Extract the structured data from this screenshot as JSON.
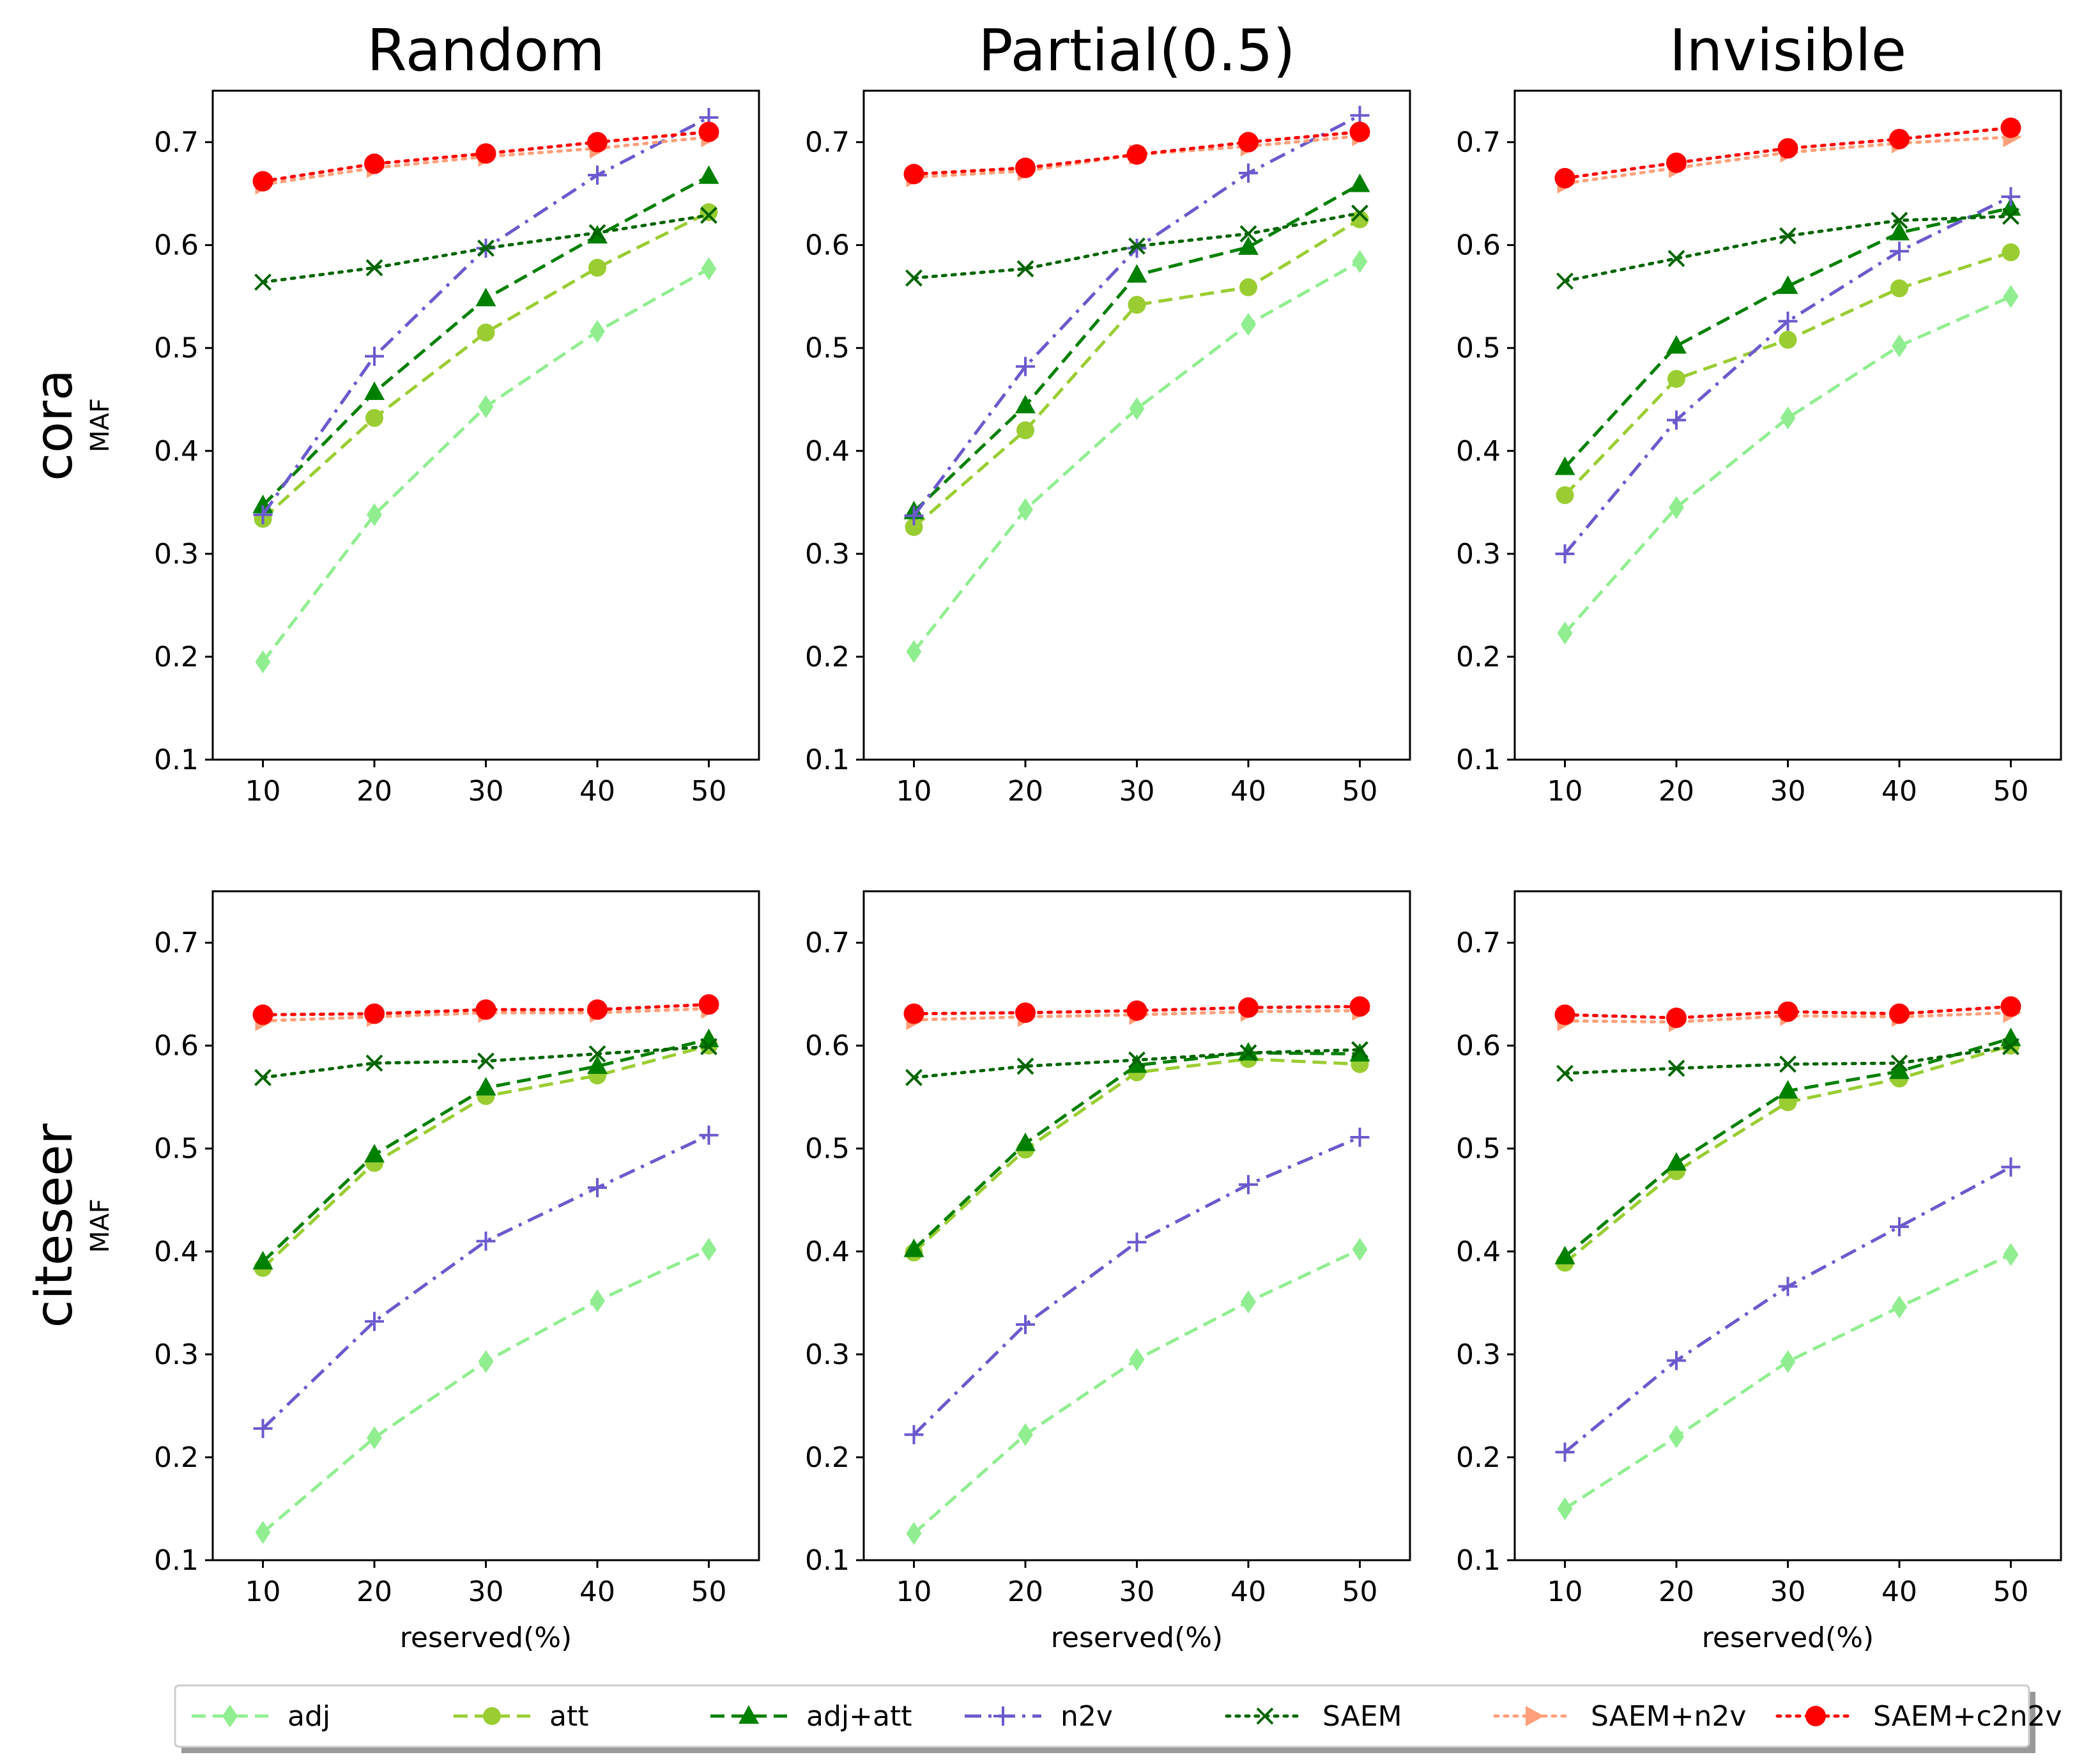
{
  "chart_data": {
    "type": "line",
    "column_titles": [
      "Random",
      "Partial(0.5)",
      "Invisible"
    ],
    "row_titles": [
      "cora",
      "citeseer"
    ],
    "ylabel": "MAF",
    "xlabel": "reserved(%)",
    "x": [
      10,
      20,
      30,
      40,
      50
    ],
    "ylim": [
      0.1,
      0.75
    ],
    "yticks": [
      0.1,
      0.2,
      0.3,
      0.4,
      0.5,
      0.6,
      0.7
    ],
    "xticks": [
      10,
      20,
      30,
      40,
      50
    ],
    "ytick_labels": [
      "0.1",
      "0.2",
      "0.3",
      "0.4",
      "0.5",
      "0.6",
      "0.7"
    ],
    "xtick_labels": [
      "10",
      "20",
      "30",
      "40",
      "50"
    ],
    "series_styles": [
      {
        "name": "adj",
        "color": "#90ee90",
        "dash": "dashed",
        "marker": "diamond"
      },
      {
        "name": "att",
        "color": "#9acd32",
        "dash": "dashed",
        "marker": "circle"
      },
      {
        "name": "adj+att",
        "color": "#008000",
        "dash": "dashed",
        "marker": "triangle"
      },
      {
        "name": "n2v",
        "color": "#6a5acd",
        "dash": "dashdot",
        "marker": "plus"
      },
      {
        "name": "SAEM",
        "color": "#006400",
        "dash": "dotted",
        "marker": "x"
      },
      {
        "name": "SAEM+n2v",
        "color": "#ffa07a",
        "dash": "dotted",
        "marker": "triangle-right"
      },
      {
        "name": "SAEM+c2n2v",
        "color": "#ff0000",
        "dash": "dotted",
        "marker": "circle-large"
      }
    ],
    "panels": [
      {
        "row": "cora",
        "column": "Random",
        "series": [
          {
            "name": "adj",
            "values": [
              0.195,
              0.338,
              0.443,
              0.516,
              0.577
            ]
          },
          {
            "name": "att",
            "values": [
              0.334,
              0.432,
              0.515,
              0.578,
              0.632
            ]
          },
          {
            "name": "adj+att",
            "values": [
              0.347,
              0.457,
              0.548,
              0.609,
              0.667
            ]
          },
          {
            "name": "n2v",
            "values": [
              0.338,
              0.492,
              0.597,
              0.668,
              0.724
            ]
          },
          {
            "name": "SAEM",
            "values": [
              0.564,
              0.578,
              0.597,
              0.612,
              0.629
            ]
          },
          {
            "name": "SAEM+n2v",
            "values": [
              0.659,
              0.675,
              0.686,
              0.694,
              0.705
            ]
          },
          {
            "name": "SAEM+c2n2v",
            "values": [
              0.662,
              0.679,
              0.689,
              0.7,
              0.71
            ]
          }
        ]
      },
      {
        "row": "cora",
        "column": "Partial(0.5)",
        "series": [
          {
            "name": "adj",
            "values": [
              0.205,
              0.343,
              0.441,
              0.523,
              0.584
            ]
          },
          {
            "name": "att",
            "values": [
              0.326,
              0.42,
              0.542,
              0.559,
              0.625
            ]
          },
          {
            "name": "adj+att",
            "values": [
              0.341,
              0.444,
              0.571,
              0.598,
              0.659
            ]
          },
          {
            "name": "n2v",
            "values": [
              0.337,
              0.482,
              0.597,
              0.67,
              0.726
            ]
          },
          {
            "name": "SAEM",
            "values": [
              0.568,
              0.577,
              0.599,
              0.611,
              0.631
            ]
          },
          {
            "name": "SAEM+n2v",
            "values": [
              0.666,
              0.672,
              0.688,
              0.696,
              0.706
            ]
          },
          {
            "name": "SAEM+c2n2v",
            "values": [
              0.669,
              0.675,
              0.688,
              0.7,
              0.71
            ]
          }
        ]
      },
      {
        "row": "cora",
        "column": "Invisible",
        "series": [
          {
            "name": "adj",
            "values": [
              0.223,
              0.345,
              0.432,
              0.502,
              0.55
            ]
          },
          {
            "name": "att",
            "values": [
              0.357,
              0.47,
              0.508,
              0.558,
              0.593
            ]
          },
          {
            "name": "adj+att",
            "values": [
              0.384,
              0.502,
              0.56,
              0.612,
              0.636
            ]
          },
          {
            "name": "n2v",
            "values": [
              0.3,
              0.43,
              0.526,
              0.594,
              0.647
            ]
          },
          {
            "name": "SAEM",
            "values": [
              0.565,
              0.587,
              0.609,
              0.624,
              0.628
            ]
          },
          {
            "name": "SAEM+n2v",
            "values": [
              0.66,
              0.675,
              0.69,
              0.699,
              0.705
            ]
          },
          {
            "name": "SAEM+c2n2v",
            "values": [
              0.665,
              0.68,
              0.694,
              0.703,
              0.714
            ]
          }
        ]
      },
      {
        "row": "citeseer",
        "column": "Random",
        "series": [
          {
            "name": "adj",
            "values": [
              0.127,
              0.219,
              0.293,
              0.352,
              0.402
            ]
          },
          {
            "name": "att",
            "values": [
              0.384,
              0.486,
              0.551,
              0.571,
              0.6
            ]
          },
          {
            "name": "adj+att",
            "values": [
              0.39,
              0.494,
              0.559,
              0.58,
              0.606
            ]
          },
          {
            "name": "n2v",
            "values": [
              0.228,
              0.332,
              0.41,
              0.462,
              0.513
            ]
          },
          {
            "name": "SAEM",
            "values": [
              0.569,
              0.583,
              0.585,
              0.592,
              0.599
            ]
          },
          {
            "name": "SAEM+n2v",
            "values": [
              0.624,
              0.628,
              0.632,
              0.632,
              0.636
            ]
          },
          {
            "name": "SAEM+c2n2v",
            "values": [
              0.63,
              0.631,
              0.635,
              0.635,
              0.64
            ]
          }
        ]
      },
      {
        "row": "citeseer",
        "column": "Partial(0.5)",
        "series": [
          {
            "name": "adj",
            "values": [
              0.126,
              0.222,
              0.295,
              0.351,
              0.402
            ]
          },
          {
            "name": "att",
            "values": [
              0.399,
              0.499,
              0.574,
              0.587,
              0.582
            ]
          },
          {
            "name": "adj+att",
            "values": [
              0.402,
              0.505,
              0.581,
              0.593,
              0.592
            ]
          },
          {
            "name": "n2v",
            "values": [
              0.222,
              0.329,
              0.409,
              0.465,
              0.511
            ]
          },
          {
            "name": "SAEM",
            "values": [
              0.569,
              0.58,
              0.586,
              0.593,
              0.596
            ]
          },
          {
            "name": "SAEM+n2v",
            "values": [
              0.625,
              0.628,
              0.63,
              0.633,
              0.634
            ]
          },
          {
            "name": "SAEM+c2n2v",
            "values": [
              0.631,
              0.632,
              0.634,
              0.637,
              0.638
            ]
          }
        ]
      },
      {
        "row": "citeseer",
        "column": "Invisible",
        "series": [
          {
            "name": "adj",
            "values": [
              0.15,
              0.22,
              0.293,
              0.346,
              0.397
            ]
          },
          {
            "name": "att",
            "values": [
              0.389,
              0.478,
              0.545,
              0.568,
              0.6
            ]
          },
          {
            "name": "adj+att",
            "values": [
              0.395,
              0.486,
              0.556,
              0.575,
              0.607
            ]
          },
          {
            "name": "n2v",
            "values": [
              0.205,
              0.294,
              0.366,
              0.424,
              0.482
            ]
          },
          {
            "name": "SAEM",
            "values": [
              0.573,
              0.578,
              0.582,
              0.583,
              0.599
            ]
          },
          {
            "name": "SAEM+n2v",
            "values": [
              0.624,
              0.623,
              0.629,
              0.628,
              0.632
            ]
          },
          {
            "name": "SAEM+c2n2v",
            "values": [
              0.63,
              0.627,
              0.633,
              0.631,
              0.638
            ]
          }
        ]
      }
    ]
  }
}
